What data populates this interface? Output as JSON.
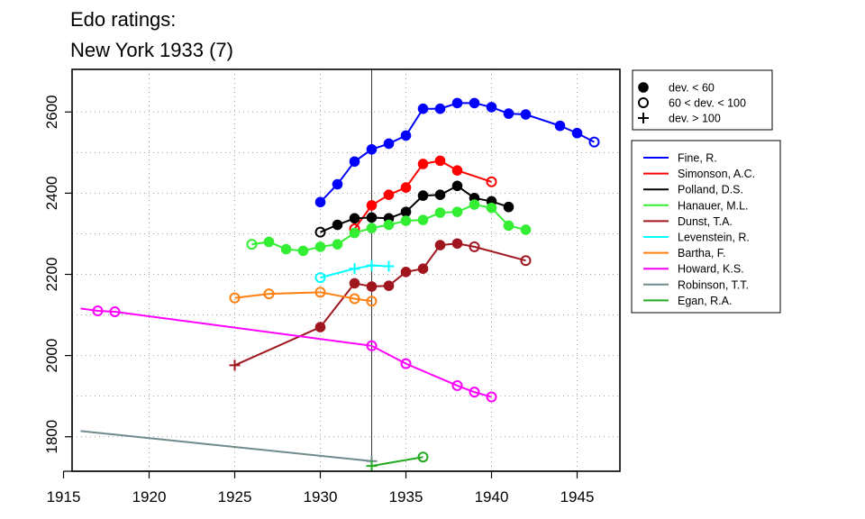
{
  "chart_data": {
    "type": "line",
    "title": "Edo ratings:",
    "subtitle": "New York 1933 (7)",
    "xlabel": "",
    "ylabel": "",
    "xlim": [
      1915.5,
      1947.5
    ],
    "ylim": [
      1715,
      2705
    ],
    "x_ticks": [
      1915,
      1920,
      1925,
      1930,
      1935,
      1940,
      1945
    ],
    "y_ticks": [
      1800,
      2000,
      2200,
      2400,
      2600
    ],
    "x_grid": [
      1920,
      1925,
      1930,
      1935,
      1940,
      1945
    ],
    "y_grid": [
      1800,
      1900,
      2000,
      2100,
      2200,
      2300,
      2400,
      2500,
      2600
    ],
    "grid": true,
    "reference_line_x": 1933,
    "marker_legend": [
      {
        "label": "dev. < 60",
        "marker": "filled"
      },
      {
        "label": "60 < dev. < 100",
        "marker": "open"
      },
      {
        "label": "dev. > 100",
        "marker": "plus"
      }
    ],
    "series": [
      {
        "name": "Fine, R.",
        "color": "#0000ff",
        "points": [
          [
            1930,
            2378,
            "f"
          ],
          [
            1931,
            2422,
            "f"
          ],
          [
            1932,
            2478,
            "f"
          ],
          [
            1933,
            2508,
            "f"
          ],
          [
            1934,
            2522,
            "f"
          ],
          [
            1935,
            2542,
            "f"
          ],
          [
            1936,
            2608,
            "f"
          ],
          [
            1937,
            2608,
            "f"
          ],
          [
            1938,
            2622,
            "f"
          ],
          [
            1939,
            2622,
            "f"
          ],
          [
            1940,
            2612,
            "f"
          ],
          [
            1941,
            2596,
            "f"
          ],
          [
            1942,
            2594,
            "f"
          ],
          [
            1944,
            2566,
            "f"
          ],
          [
            1945,
            2548,
            "f"
          ],
          [
            1946,
            2526,
            "o"
          ]
        ]
      },
      {
        "name": "Simonson, A.C.",
        "color": "#ff0000",
        "points": [
          [
            1932,
            2312,
            "o"
          ],
          [
            1933,
            2370,
            "f"
          ],
          [
            1934,
            2396,
            "f"
          ],
          [
            1935,
            2414,
            "f"
          ],
          [
            1936,
            2472,
            "f"
          ],
          [
            1937,
            2480,
            "f"
          ],
          [
            1938,
            2456,
            "f"
          ],
          [
            1940,
            2428,
            "o"
          ]
        ]
      },
      {
        "name": "Polland, D.S.",
        "color": "#000000",
        "points": [
          [
            1930,
            2304,
            "o"
          ],
          [
            1931,
            2322,
            "f"
          ],
          [
            1932,
            2338,
            "f"
          ],
          [
            1933,
            2340,
            "f"
          ],
          [
            1934,
            2338,
            "f"
          ],
          [
            1935,
            2354,
            "f"
          ],
          [
            1936,
            2394,
            "f"
          ],
          [
            1937,
            2396,
            "f"
          ],
          [
            1938,
            2418,
            "f"
          ],
          [
            1939,
            2388,
            "f"
          ],
          [
            1940,
            2380,
            "f"
          ],
          [
            1941,
            2366,
            "f"
          ]
        ]
      },
      {
        "name": "Hanauer, M.L.",
        "color": "#33ee33",
        "points": [
          [
            1926,
            2274,
            "o"
          ],
          [
            1927,
            2280,
            "f"
          ],
          [
            1928,
            2262,
            "f"
          ],
          [
            1929,
            2258,
            "f"
          ],
          [
            1930,
            2268,
            "f"
          ],
          [
            1931,
            2274,
            "f"
          ],
          [
            1932,
            2302,
            "f"
          ],
          [
            1933,
            2314,
            "f"
          ],
          [
            1934,
            2322,
            "f"
          ],
          [
            1935,
            2332,
            "f"
          ],
          [
            1936,
            2334,
            "f"
          ],
          [
            1937,
            2352,
            "f"
          ],
          [
            1938,
            2354,
            "f"
          ],
          [
            1939,
            2372,
            "f"
          ],
          [
            1940,
            2364,
            "f"
          ],
          [
            1941,
            2320,
            "f"
          ],
          [
            1942,
            2310,
            "f"
          ]
        ]
      },
      {
        "name": "Dunst, T.A.",
        "color": "#a0161e",
        "points": [
          [
            1925,
            1976,
            "p"
          ],
          [
            1930,
            2070,
            "f"
          ],
          [
            1932,
            2178,
            "f"
          ],
          [
            1933,
            2170,
            "f"
          ],
          [
            1934,
            2172,
            "f"
          ],
          [
            1935,
            2206,
            "f"
          ],
          [
            1936,
            2214,
            "f"
          ],
          [
            1937,
            2272,
            "f"
          ],
          [
            1938,
            2276,
            "f"
          ],
          [
            1939,
            2268,
            "o"
          ],
          [
            1942,
            2234,
            "o"
          ]
        ]
      },
      {
        "name": "Levenstein, R.",
        "color": "#00ffff",
        "points": [
          [
            1930,
            2192,
            "o"
          ],
          [
            1932,
            2214,
            "p"
          ],
          [
            1933,
            2222,
            "p"
          ],
          [
            1934,
            2220,
            "p"
          ]
        ]
      },
      {
        "name": "Bartha, F.",
        "color": "#ff7f10",
        "points": [
          [
            1925,
            2142,
            "o"
          ],
          [
            1927,
            2152,
            "o"
          ],
          [
            1930,
            2156,
            "o"
          ],
          [
            1932,
            2140,
            "o"
          ],
          [
            1933,
            2134,
            "o"
          ]
        ]
      },
      {
        "name": "Howard, K.S.",
        "color": "#ff00ff",
        "points": [
          [
            1916,
            2116,
            "n"
          ],
          [
            1917,
            2110,
            "o"
          ],
          [
            1918,
            2108,
            "o"
          ],
          [
            1933,
            2024,
            "o"
          ],
          [
            1935,
            1980,
            "o"
          ],
          [
            1938,
            1926,
            "o"
          ],
          [
            1939,
            1910,
            "o"
          ],
          [
            1940,
            1898,
            "o"
          ]
        ]
      },
      {
        "name": "Robinson, T.T.",
        "color": "#6e8a8a",
        "points": [
          [
            1916,
            1814,
            "n"
          ],
          [
            1933,
            1740,
            "p"
          ]
        ]
      },
      {
        "name": "Egan, R.A.",
        "color": "#22aa22",
        "points": [
          [
            1933,
            1728,
            "p"
          ],
          [
            1936,
            1750,
            "o"
          ]
        ]
      }
    ]
  }
}
